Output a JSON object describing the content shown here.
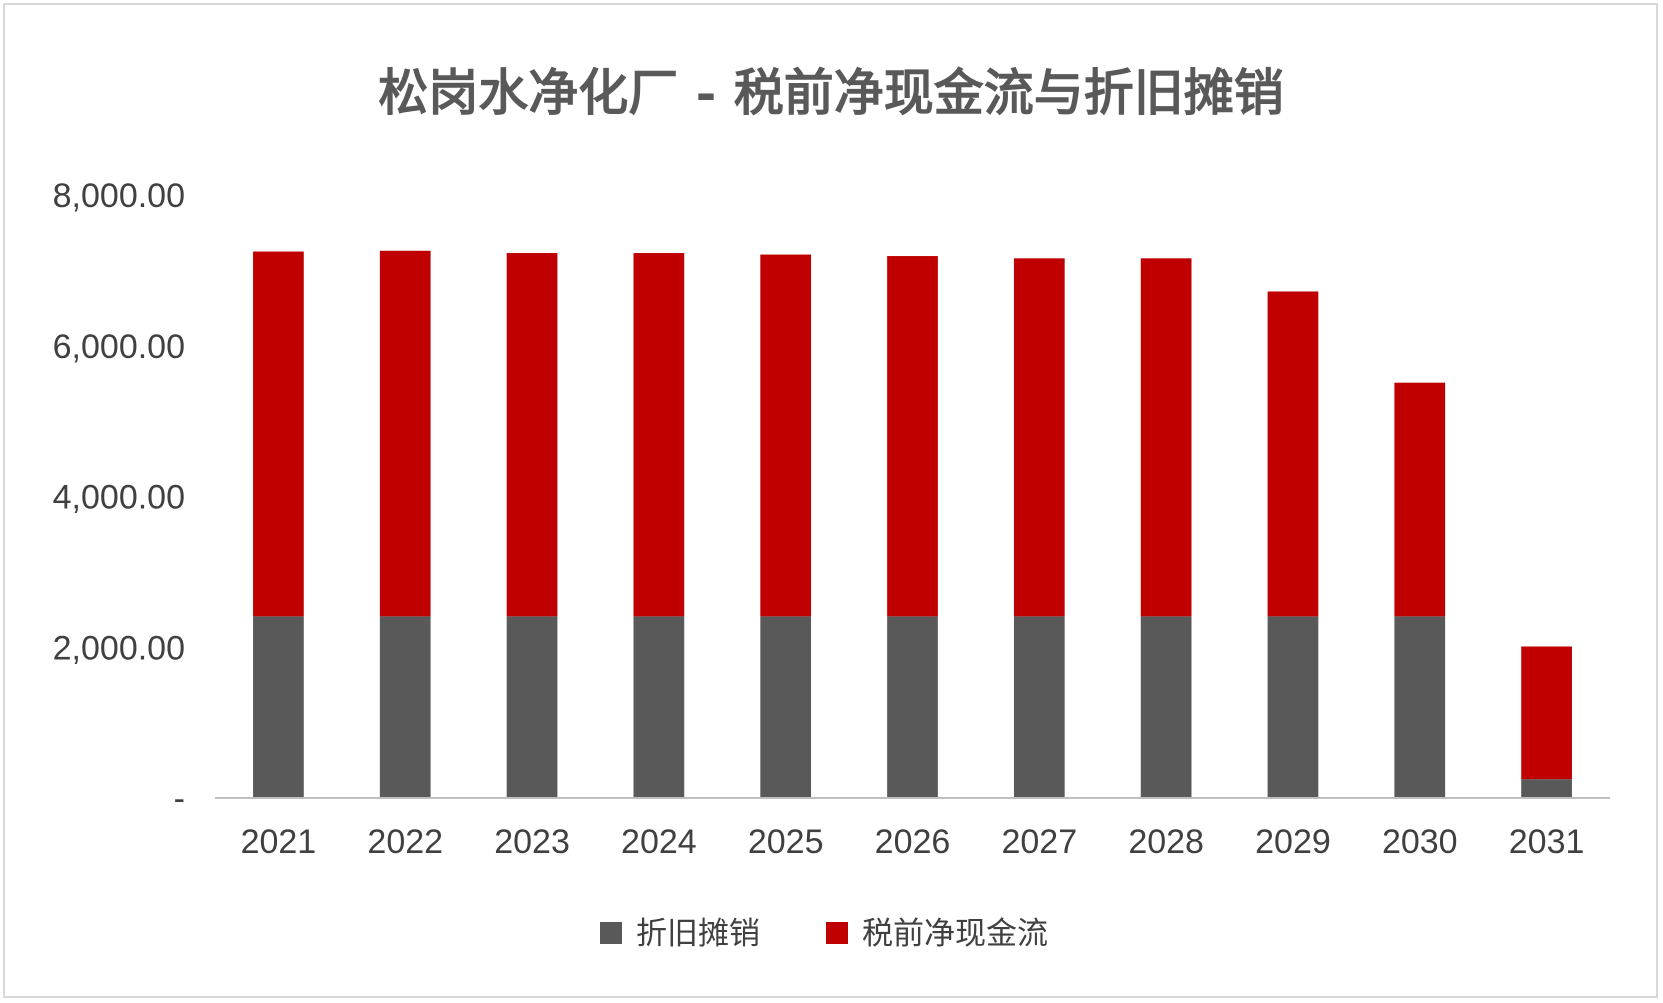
{
  "chart_data": {
    "type": "bar",
    "stacked": true,
    "title": "松岗水净化厂 - 税前净现金流与折旧摊销",
    "xlabel": "",
    "ylabel": "",
    "categories": [
      "2021",
      "2022",
      "2023",
      "2024",
      "2025",
      "2026",
      "2027",
      "2028",
      "2029",
      "2030",
      "2031"
    ],
    "series": [
      {
        "name": "折旧摊销",
        "color": "#595959",
        "values": [
          2410,
          2410,
          2410,
          2410,
          2410,
          2410,
          2410,
          2410,
          2410,
          2410,
          250
        ]
      },
      {
        "name": "税前净现金流",
        "color": "#c00000",
        "values": [
          4840,
          4850,
          4820,
          4820,
          4800,
          4780,
          4750,
          4750,
          4310,
          3100,
          1760
        ]
      }
    ],
    "ylim": [
      0,
      8000
    ],
    "yticks": [
      0,
      2000,
      4000,
      6000,
      8000
    ],
    "ytick_labels": [
      "-",
      "2,000.00",
      "4,000.00",
      "6,000.00",
      "8,000.00"
    ],
    "grid": false,
    "legend_position": "bottom"
  }
}
